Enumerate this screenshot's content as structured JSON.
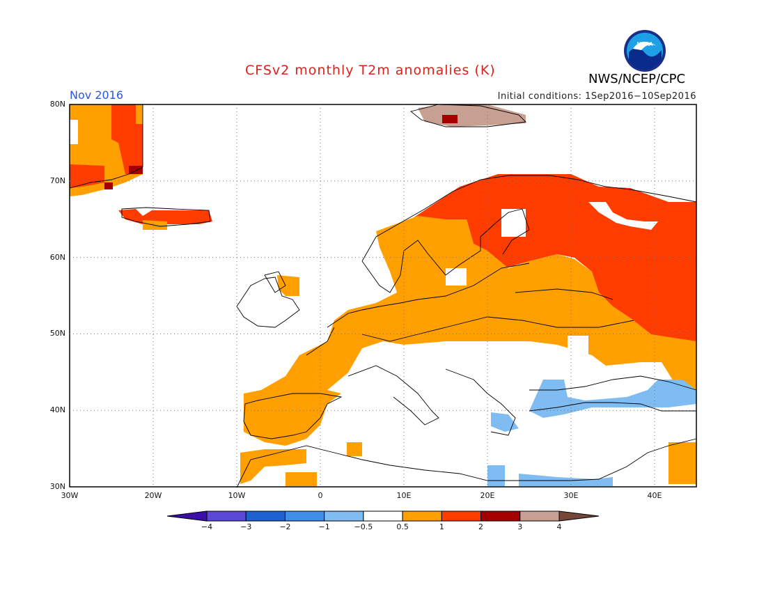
{
  "header": {
    "title": "CFSv2 monthly T2m anomalies (K)",
    "org": "NWS/NCEP/CPC",
    "month": "Nov 2016",
    "initial_conditions": "Initial conditions: 1Sep2016−10Sep2016",
    "logo_text": "NOAA",
    "logo_icon": "noaa-logo-icon"
  },
  "map": {
    "region": "Europe",
    "lon_range": [
      -30,
      45
    ],
    "lat_range": [
      30,
      80
    ],
    "lat_labels": [
      "80N",
      "70N",
      "60N",
      "50N",
      "40N",
      "30N"
    ],
    "lon_labels": [
      "30W",
      "20W",
      "10W",
      "0",
      "10E",
      "20E",
      "30E",
      "40E"
    ],
    "grid": "dotted"
  },
  "colorbar": {
    "tick_labels": [
      "−4",
      "−3",
      "−2",
      "−1",
      "−0.5",
      "0.5",
      "1",
      "2",
      "3",
      "4"
    ],
    "colors": [
      "#3a0fa8",
      "#5b47d8",
      "#1e62d2",
      "#3f8ee8",
      "#7fbcf2",
      "#ffffff",
      "#ffa000",
      "#ff3c00",
      "#a50000",
      "#c8a092",
      "#74473a"
    ]
  }
}
